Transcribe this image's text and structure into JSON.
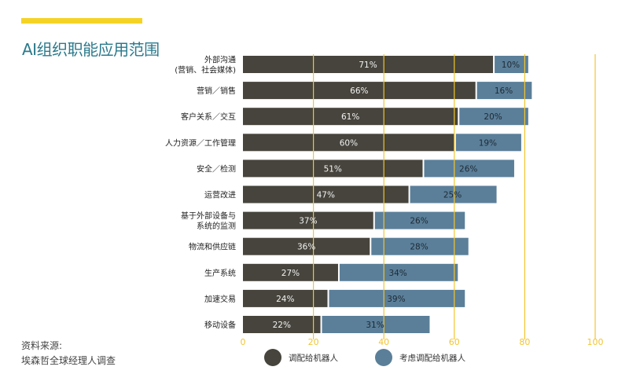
{
  "header": {
    "title": "AI组织职能应用范围"
  },
  "source": {
    "line1": "资料来源:",
    "line2": "埃森哲全球经理人调查"
  },
  "colors": {
    "accent": "#f5d325",
    "deployed": "#46443c",
    "considering": "#5b7f99",
    "grid": "#f2c530",
    "title": "#2b7a8c"
  },
  "chart_data": {
    "type": "bar",
    "orientation": "horizontal",
    "stacked": true,
    "categories": [
      "外部沟通\n(营销、社会媒体)",
      "营销／销售",
      "客户关系／交互",
      "人力资源／工作管理",
      "安全／检测",
      "运营改进",
      "基于外部设备与\n系统的监测",
      "物流和供应链",
      "生产系统",
      "加速交易",
      "移动设备"
    ],
    "series": [
      {
        "name": "调配给机器人",
        "values": [
          71,
          66,
          61,
          60,
          51,
          47,
          37,
          36,
          27,
          24,
          22
        ],
        "color": "#46443c"
      },
      {
        "name": "考虑调配给机器人",
        "values": [
          10,
          16,
          20,
          19,
          26,
          25,
          26,
          28,
          34,
          39,
          31
        ],
        "color": "#5b7f99"
      }
    ],
    "xlim": [
      0,
      100
    ],
    "xticks": [
      0,
      20,
      40,
      60,
      80,
      100
    ],
    "grid": true,
    "legend": "bottom"
  }
}
